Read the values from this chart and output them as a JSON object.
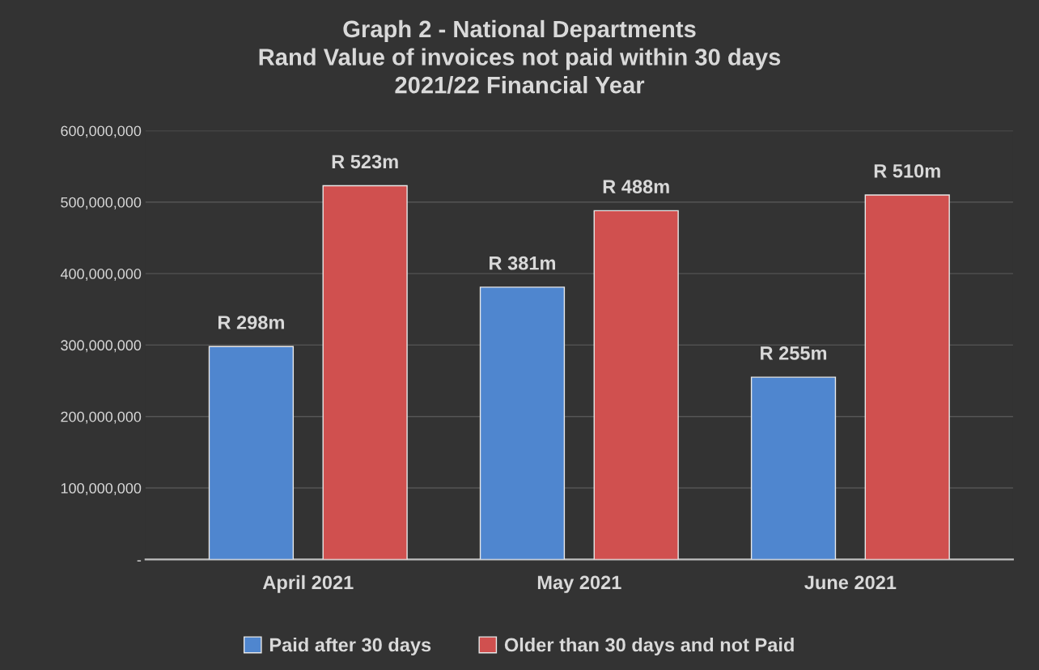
{
  "chart_data": {
    "type": "bar",
    "title": "Graph 2 - National Departments\nRand Value of invoices not paid within 30 days\n2021/22 Financial Year",
    "categories": [
      "April 2021",
      "May 2021",
      "June 2021"
    ],
    "series": [
      {
        "name": "Paid after 30 days",
        "color": "#4f86cf",
        "values": [
          298000000,
          381000000,
          255000000
        ],
        "value_labels": [
          "R 298m",
          "R 381m",
          "R 255m"
        ]
      },
      {
        "name": "Older than 30 days and not Paid",
        "color": "#d0504f",
        "values": [
          523000000,
          488000000,
          510000000
        ],
        "value_labels": [
          "R 523m",
          "R 488m",
          "R 510m"
        ]
      }
    ],
    "ylim": [
      0,
      600000000
    ],
    "yticks": [
      {
        "value": 0,
        "label": "-"
      },
      {
        "value": 100000000,
        "label": "100,000,000"
      },
      {
        "value": 200000000,
        "label": "200,000,000"
      },
      {
        "value": 300000000,
        "label": "300,000,000"
      },
      {
        "value": 400000000,
        "label": "400,000,000"
      },
      {
        "value": 500000000,
        "label": "500,000,000"
      },
      {
        "value": 600000000,
        "label": "600,000,000"
      }
    ],
    "grid": "y",
    "legend": "bottom"
  }
}
